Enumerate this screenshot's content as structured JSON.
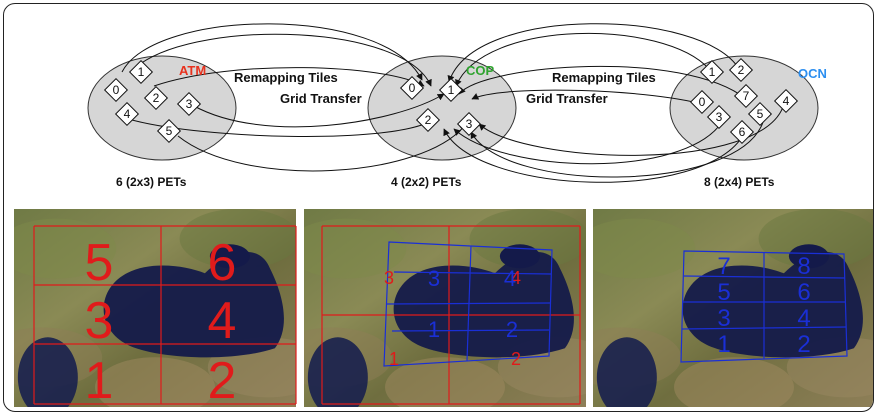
{
  "components": {
    "atm": {
      "name": "ATM",
      "color": "#e8321e",
      "pets": "6 (2x3) PETs",
      "tiles": [
        "0",
        "1",
        "2",
        "3",
        "4",
        "5"
      ]
    },
    "cop": {
      "name": "COP",
      "color": "#2fa32f",
      "pets": "4 (2x2) PETs",
      "tiles": [
        "0",
        "1",
        "2",
        "3"
      ]
    },
    "ocn": {
      "name": "OCN",
      "color": "#2d8ff0",
      "pets": "8 (2x4) PETs",
      "tiles": [
        "0",
        "1",
        "2",
        "3",
        "4",
        "5",
        "6",
        "7"
      ]
    }
  },
  "labels": {
    "left_remap": "Remapping Tiles",
    "left_grid": "Grid Transfer",
    "right_remap": "Remapping Tiles",
    "right_grid": "Grid Transfer"
  },
  "maps": {
    "atm_numbers": [
      "5",
      "6",
      "3",
      "4",
      "1",
      "2"
    ],
    "cop_red_numbers": [
      "3",
      "4",
      "1",
      "2"
    ],
    "cop_blue_numbers": [
      "3",
      "4",
      "1",
      "2"
    ],
    "ocn_numbers": [
      "7",
      "8",
      "5",
      "6",
      "3",
      "4",
      "1",
      "2"
    ],
    "red_color": "#e01b1b",
    "blue_color": "#1a2fd6"
  }
}
